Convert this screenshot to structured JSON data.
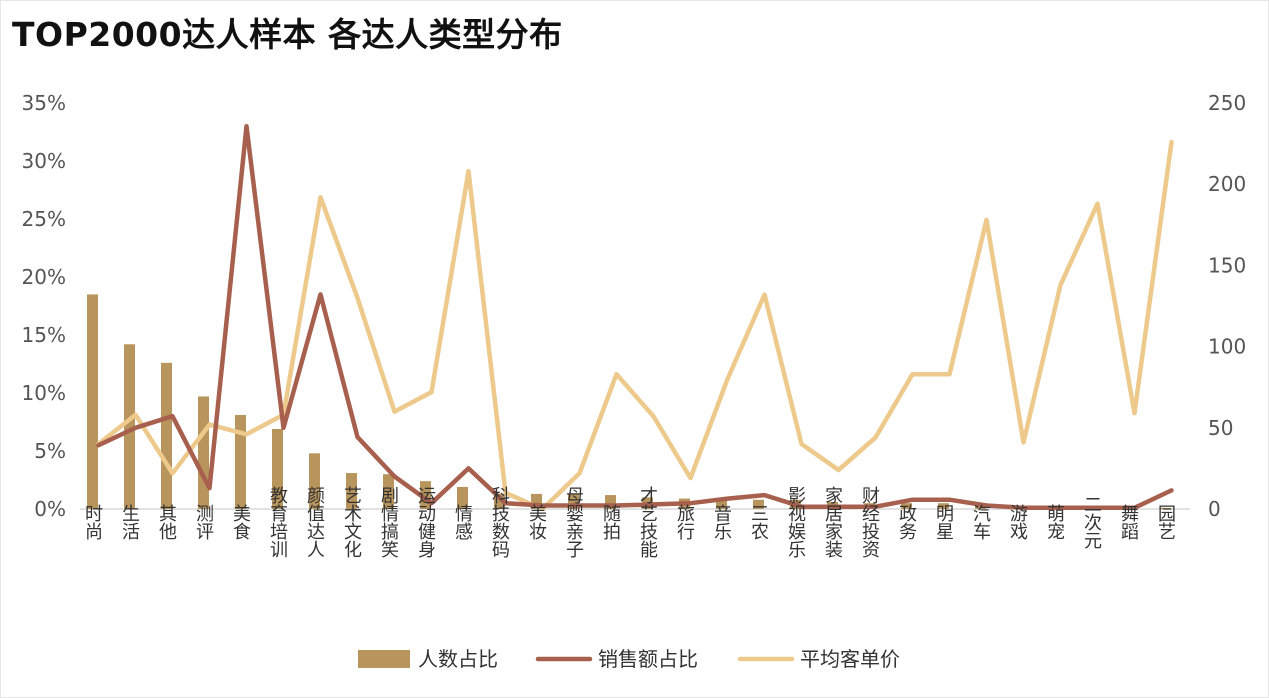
{
  "title": "TOP2000达人样本 各达人类型分布",
  "colors": {
    "bar": "#b8955c",
    "sales": "#a8604e",
    "price": "#edc98c",
    "axis": "#d9d9d9"
  },
  "chart_data": {
    "type": "bar",
    "title": "TOP2000达人样本 各达人类型分布",
    "categories": [
      "时尚",
      "生活",
      "其他",
      "测评",
      "美食",
      "教育培训",
      "颜值达人",
      "艺术文化",
      "剧情搞笑",
      "运动健身",
      "情感",
      "科技数码",
      "美妆",
      "母婴亲子",
      "随拍",
      "才艺技能",
      "旅行",
      "音乐",
      "三农",
      "影视娱乐",
      "家居家装",
      "财经投资",
      "政务",
      "明星",
      "汽车",
      "游戏",
      "萌宠",
      "二次元",
      "舞蹈",
      "园艺"
    ],
    "y_left": {
      "ticks": [
        "0%",
        "5%",
        "10%",
        "15%",
        "20%",
        "25%",
        "30%",
        "35%"
      ],
      "ylim": [
        0,
        35
      ]
    },
    "y_right": {
      "ticks": [
        "0",
        "50",
        "100",
        "150",
        "200",
        "250"
      ],
      "ylim": [
        0,
        250
      ]
    },
    "series": [
      {
        "name": "人数占比",
        "kind": "bar",
        "axis": "left",
        "values": [
          18.5,
          14.2,
          12.6,
          9.7,
          8.1,
          6.9,
          4.8,
          3.1,
          3.0,
          2.4,
          1.9,
          1.3,
          1.3,
          1.3,
          1.2,
          1.0,
          0.9,
          0.8,
          0.8,
          0.8,
          0.6,
          0.5,
          0.5,
          0.5,
          0.3,
          0.3,
          0.3,
          0.3,
          0.2,
          0.1
        ]
      },
      {
        "name": "销售额占比",
        "kind": "line",
        "axis": "left",
        "values": [
          5.5,
          7.0,
          8.0,
          1.8,
          33.0,
          7.0,
          18.5,
          6.2,
          2.8,
          0.5,
          3.5,
          0.5,
          0.3,
          0.3,
          0.3,
          0.4,
          0.5,
          0.9,
          1.2,
          0.2,
          0.2,
          0.2,
          0.8,
          0.8,
          0.3,
          0.1,
          0.1,
          0.1,
          0.1,
          1.6
        ]
      },
      {
        "name": "平均客单价",
        "kind": "line",
        "axis": "right",
        "values": [
          40,
          58,
          22,
          52,
          46,
          58,
          192,
          130,
          60,
          72,
          208,
          10,
          0,
          22,
          83,
          57,
          19,
          80,
          132,
          40,
          24,
          44,
          83,
          83,
          178,
          41,
          138,
          188,
          59,
          226
        ]
      }
    ],
    "legend": "bottom",
    "grid": false
  }
}
